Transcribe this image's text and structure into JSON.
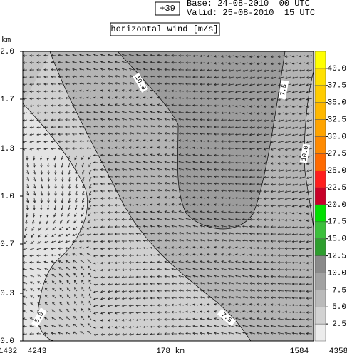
{
  "chart_data": {
    "type": "contour",
    "forecast_step": "+39",
    "base": "Base: 24-08-2010  00 UTC",
    "valid": "Valid: 25-08-2010  15 UTC",
    "title": "horizontal wind [m/s]",
    "y_label": "km",
    "ylim": [
      0,
      2
    ],
    "yticks": [
      {
        "value": 0,
        "label": "0.0"
      },
      {
        "value": 0.33,
        "label": "0.3"
      },
      {
        "value": 0.67,
        "label": "0.7"
      },
      {
        "value": 1,
        "label": "1.0"
      },
      {
        "value": 1.33,
        "label": "1.3"
      },
      {
        "value": 1.67,
        "label": "1.7"
      },
      {
        "value": 2,
        "label": "2.0"
      }
    ],
    "x_labels": [
      "1432",
      "4243",
      "178 km",
      "1584",
      "4358"
    ],
    "contour_labels": [
      "10.0",
      "7.5",
      "10.0",
      "5.0",
      "7.5"
    ],
    "colorbar": {
      "levels": [
        0,
        2.5,
        5,
        7.5,
        10,
        12.5,
        15,
        17.5,
        20,
        22.5,
        25,
        27.5,
        30,
        32.5,
        35,
        37.5,
        40,
        42.5
      ],
      "colors": [
        "#ececec",
        "#d2d2d2",
        "#bababa",
        "#a2a2a2",
        "#8a8a8a",
        "#2e9e2e",
        "#3cc03c",
        "#00e000",
        "#c80028",
        "#ff1e1e",
        "#ff6a00",
        "#ff8a00",
        "#ffa400",
        "#ffb800",
        "#ffcc00",
        "#ffe000",
        "#ffff00"
      ],
      "ticks": [
        {
          "value": 2.5,
          "label": "2.5"
        },
        {
          "value": 5,
          "label": "5.0"
        },
        {
          "value": 7.5,
          "label": "7.5"
        },
        {
          "value": 10,
          "label": "10.0"
        },
        {
          "value": 12.5,
          "label": "12.5"
        },
        {
          "value": 15,
          "label": "15.0"
        },
        {
          "value": 17.5,
          "label": "17.5"
        },
        {
          "value": 20,
          "label": "20.0"
        },
        {
          "value": 22.5,
          "label": "22.5"
        },
        {
          "value": 25,
          "label": "25.0"
        },
        {
          "value": 27.5,
          "label": "27.5"
        },
        {
          "value": 30,
          "label": "30.0"
        },
        {
          "value": 32.5,
          "label": "32.5"
        },
        {
          "value": 35,
          "label": "35.0"
        },
        {
          "value": 37.5,
          "label": "37.5"
        },
        {
          "value": 40,
          "label": "40.0"
        }
      ]
    }
  }
}
